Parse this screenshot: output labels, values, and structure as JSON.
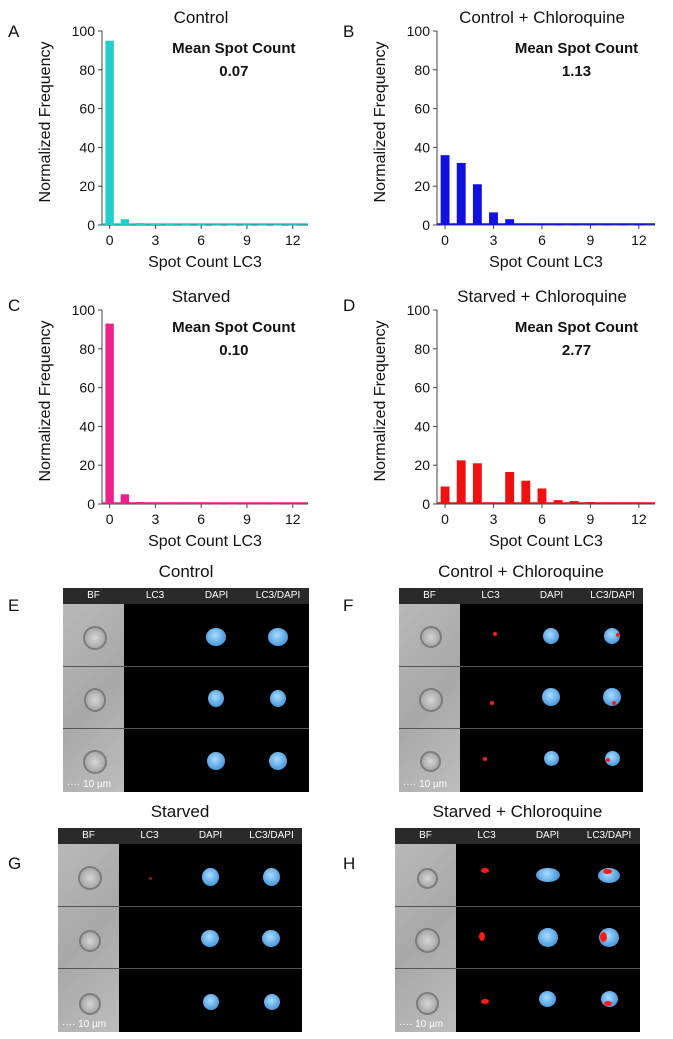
{
  "chart_data": [
    {
      "id": "A",
      "type": "bar",
      "title": "Control",
      "xlabel": "Spot Count LC3",
      "ylabel": "Normalized Frequency",
      "annotation_label": "Mean Spot Count",
      "annotation_value": "0.07",
      "color": "#1fcfcf",
      "xlim": [
        -0.5,
        13
      ],
      "ylim": [
        0,
        100
      ],
      "xticks": [
        "0",
        "3",
        "6",
        "9",
        "12"
      ],
      "yticks": [
        "0",
        "20",
        "40",
        "60",
        "80",
        "100"
      ],
      "x": [
        0,
        1,
        2,
        3,
        4,
        5,
        6,
        7,
        8,
        9,
        10,
        11,
        12
      ],
      "values": [
        95,
        3,
        1,
        0.6,
        0.6,
        0.2,
        0.2,
        0.1,
        0.1,
        0.1,
        0.1,
        0.1,
        0.1
      ]
    },
    {
      "id": "B",
      "type": "bar",
      "title": "Control + Chloroquine",
      "xlabel": "Spot Count LC3",
      "ylabel": "Normalized Frequency",
      "annotation_label": "Mean Spot Count",
      "annotation_value": "1.13",
      "color": "#1010e0",
      "xlim": [
        -0.5,
        13
      ],
      "ylim": [
        0,
        100
      ],
      "xticks": [
        "0",
        "3",
        "6",
        "9",
        "12"
      ],
      "yticks": [
        "0",
        "20",
        "40",
        "60",
        "80",
        "100"
      ],
      "x": [
        0,
        1,
        2,
        3,
        4,
        5,
        6,
        7,
        8,
        9,
        10,
        11,
        12
      ],
      "values": [
        36,
        32,
        21,
        6.5,
        3,
        0.8,
        0.3,
        0.2,
        0.1,
        0.1,
        0.1,
        0.1,
        0.1
      ]
    },
    {
      "id": "C",
      "type": "bar",
      "title": "Starved",
      "xlabel": "Spot Count LC3",
      "ylabel": "Normalized Frequency",
      "annotation_label": "Mean Spot Count",
      "annotation_value": "0.10",
      "color": "#f0208a",
      "xlim": [
        -0.5,
        13
      ],
      "ylim": [
        0,
        100
      ],
      "xticks": [
        "0",
        "3",
        "6",
        "9",
        "12"
      ],
      "yticks": [
        "0",
        "20",
        "40",
        "60",
        "80",
        "100"
      ],
      "x": [
        0,
        1,
        2,
        3,
        4,
        5,
        6,
        7,
        8,
        9,
        10,
        11,
        12
      ],
      "values": [
        93,
        5,
        1,
        0.6,
        0.2,
        0.5,
        0.2,
        0.1,
        0.1,
        0.1,
        0.1,
        0.1,
        0.1
      ]
    },
    {
      "id": "D",
      "type": "bar",
      "title": "Starved + Chloroquine",
      "xlabel": "Spot Count LC3",
      "ylabel": "Normalized Frequency",
      "annotation_label": "Mean Spot Count",
      "annotation_value": "2.77",
      "color": "#f01010",
      "xlim": [
        -0.5,
        13
      ],
      "ylim": [
        0,
        100
      ],
      "xticks": [
        "0",
        "3",
        "6",
        "9",
        "12"
      ],
      "yticks": [
        "0",
        "20",
        "40",
        "60",
        "80",
        "100"
      ],
      "x": [
        0,
        1,
        2,
        3,
        4,
        5,
        6,
        7,
        8,
        9,
        10,
        11,
        12
      ],
      "values": [
        9,
        22.5,
        21,
        0,
        16.5,
        12,
        8,
        2,
        1.5,
        1,
        0.5,
        0.5,
        0.5
      ]
    }
  ],
  "image_panels": [
    {
      "id": "E",
      "title": "Control",
      "columns": [
        "BF",
        "LC3",
        "DAPI",
        "LC3/DAPI"
      ],
      "scale": "10 µm"
    },
    {
      "id": "F",
      "title": "Control + Chloroquine",
      "columns": [
        "BF",
        "LC3",
        "DAPI",
        "LC3/DAPI"
      ],
      "scale": "10 µm"
    },
    {
      "id": "G",
      "title": "Starved",
      "columns": [
        "BF",
        "LC3",
        "DAPI",
        "LC3/DAPI"
      ],
      "scale": "10 µm"
    },
    {
      "id": "H",
      "title": "Starved + Chloroquine",
      "columns": [
        "BF",
        "LC3",
        "DAPI",
        "LC3/DAPI"
      ],
      "scale": "10 µm"
    }
  ]
}
